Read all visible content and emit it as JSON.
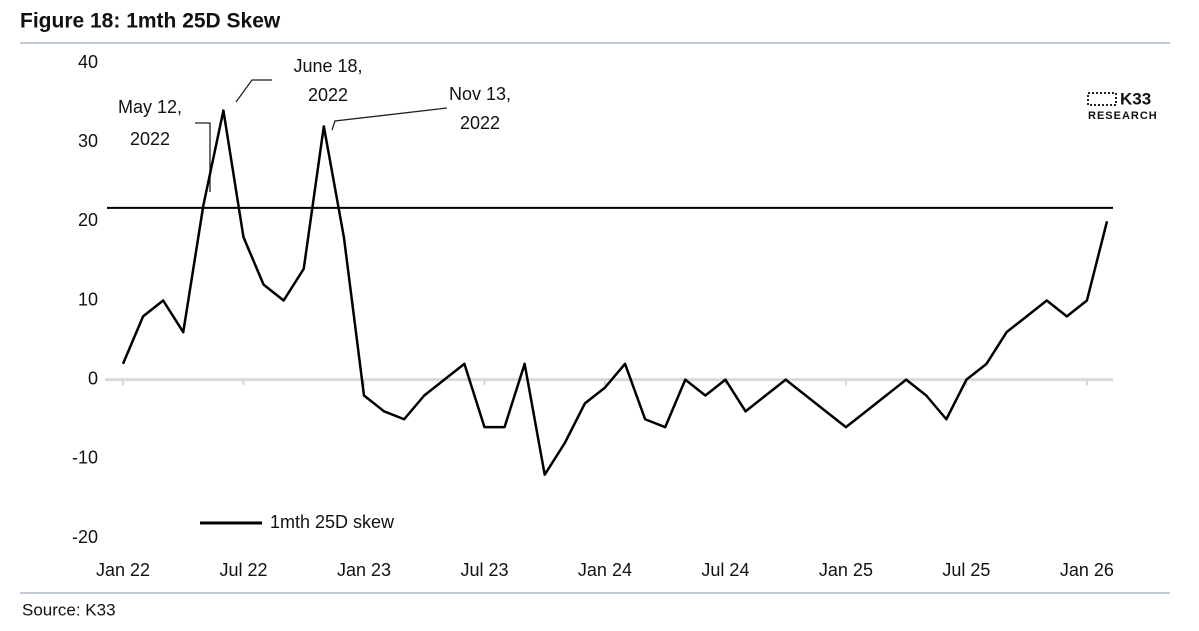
{
  "chart_data": {
    "type": "line",
    "title": "Figure 18: 1mth 25D Skew",
    "x": [
      "2022-01",
      "2022-02",
      "2022-03",
      "2022-04",
      "2022-05",
      "2022-06",
      "2022-07",
      "2022-08",
      "2022-09",
      "2022-10",
      "2022-11",
      "2022-12",
      "2023-01",
      "2023-02",
      "2023-03",
      "2023-04",
      "2023-05",
      "2023-06",
      "2023-07",
      "2023-08",
      "2023-09",
      "2023-10",
      "2023-11",
      "2023-12",
      "2024-01",
      "2024-02",
      "2024-03",
      "2024-04",
      "2024-05",
      "2024-06",
      "2024-07",
      "2024-08",
      "2024-09",
      "2024-10",
      "2024-11",
      "2024-12",
      "2025-01",
      "2025-02",
      "2025-03",
      "2025-04",
      "2025-05",
      "2025-06",
      "2025-07",
      "2025-08",
      "2025-09",
      "2025-10",
      "2025-11",
      "2025-12",
      "2026-01",
      "2026-02"
    ],
    "series": [
      {
        "name": "1mth 25D skew",
        "color": "#000000",
        "values": [
          2,
          8,
          10,
          6,
          22,
          34,
          18,
          12,
          10,
          14,
          32,
          18,
          -2,
          -4,
          -5,
          -2,
          0,
          2,
          -6,
          -6,
          2,
          -12,
          -8,
          -3,
          -1,
          2,
          -5,
          -6,
          0,
          -2,
          0,
          -4,
          -2,
          0,
          -2,
          -4,
          -6,
          -4,
          -2,
          0,
          -2,
          -5,
          0,
          2,
          6,
          8,
          10,
          8,
          10,
          20
        ]
      }
    ],
    "hline": 21.7,
    "xlim": [
      "2022-01",
      "2026-02"
    ],
    "xticks": [
      {
        "value": "2022-01",
        "label": "Jan 22"
      },
      {
        "value": "2022-07",
        "label": "Jul 22"
      },
      {
        "value": "2023-01",
        "label": "Jan 23"
      },
      {
        "value": "2023-07",
        "label": "Jul 23"
      },
      {
        "value": "2024-01",
        "label": "Jan 24"
      },
      {
        "value": "2024-07",
        "label": "Jul 24"
      },
      {
        "value": "2025-01",
        "label": "Jan 25"
      },
      {
        "value": "2025-07",
        "label": "Jul 25"
      },
      {
        "value": "2026-01",
        "label": "Jan 26"
      }
    ],
    "ylim": [
      -20,
      40
    ],
    "yticks": [
      -20,
      -10,
      0,
      10,
      20,
      30,
      40
    ],
    "annotations": [
      [
        "May 12,",
        "2022"
      ],
      [
        "June 18,",
        "2022"
      ],
      [
        "Nov 13,",
        "2022"
      ]
    ],
    "logo": [
      "K33",
      "RESEARCH"
    ],
    "source": "Source: K33"
  }
}
